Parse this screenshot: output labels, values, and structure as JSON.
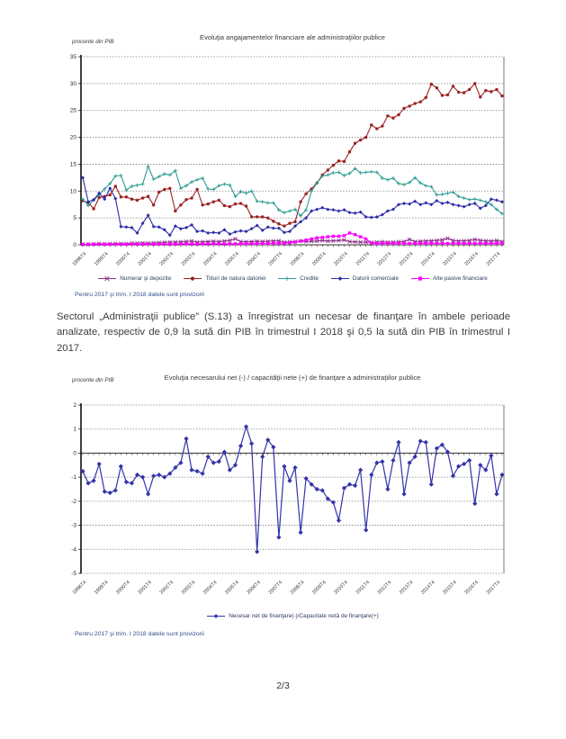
{
  "page": {
    "number": "2/3"
  },
  "paragraph": {
    "text": "Sectorul „Administraţii publice” (S.13) a înregistrat un necesar de finanţare în ambele perioade analizate, respectiv de 0,9 la sută din PIB în trimestrul I 2018 şi 0,5 la sută din PIB în trimestrul I 2017."
  },
  "chart_data": [
    {
      "type": "line",
      "title": "Evoluţia angajamentelor financiare ale administraţiilor publice",
      "y_axis_caption": "procente din PIB",
      "note": "Pentru 2017 şi trim. I 2018 datele sunt provizorii",
      "ylim": [
        0,
        35
      ],
      "ystep": 5,
      "y_tick_labels": [
        35,
        30,
        25,
        20,
        15,
        10,
        5,
        0
      ],
      "grid": "horizontal-dotted",
      "legend_position": "bottom",
      "tick_every": 4,
      "n_points": 78,
      "x_tick_labels": [
        "1998T4",
        "1999T4",
        "2000T4",
        "2001T4",
        "2002T4",
        "2003T4",
        "2004T4",
        "2005T4",
        "2006T4",
        "2007T4",
        "2008T4",
        "2009T4",
        "2010T4",
        "2011T4",
        "2012T4",
        "2013T4",
        "2014T4",
        "2015T4",
        "2016T4",
        "2017T4"
      ],
      "series": [
        {
          "name": "Numerar şi depozite",
          "color": "#8B2F8B",
          "marker": "x",
          "values": [
            0.1,
            0.1,
            0.15,
            0.2,
            0.15,
            0.2,
            0.2,
            0.25,
            0.2,
            0.3,
            0.3,
            0.35,
            0.3,
            0.35,
            0.4,
            0.45,
            0.5,
            0.5,
            0.55,
            0.6,
            0.7,
            0.5,
            0.55,
            0.6,
            0.65,
            0.6,
            0.7,
            0.8,
            1.1,
            0.6,
            0.55,
            0.6,
            0.65,
            0.6,
            0.65,
            0.7,
            0.75,
            0.5,
            0.55,
            0.6,
            0.7,
            0.6,
            0.65,
            0.7,
            0.8,
            0.7,
            0.75,
            0.8,
            0.9,
            0.6,
            0.55,
            0.5,
            0.5,
            0.45,
            0.5,
            0.55,
            0.5,
            0.5,
            0.55,
            0.6,
            1.0,
            0.6,
            0.65,
            0.7,
            0.75,
            0.8,
            0.9,
            1.2,
            0.8,
            0.7,
            0.75,
            0.8,
            1.0,
            0.8,
            0.75,
            0.7,
            0.8,
            0.6
          ]
        },
        {
          "name": "Titluri de natura datoriei",
          "color": "#9B2222",
          "marker": "circle",
          "values": [
            8.2,
            7.9,
            6.7,
            8.8,
            9.0,
            9.3,
            10.9,
            8.9,
            8.9,
            8.5,
            8.3,
            8.7,
            9.0,
            7.4,
            9.8,
            10.3,
            10.5,
            6.3,
            7.4,
            8.4,
            8.7,
            10.3,
            7.4,
            7.6,
            8.0,
            8.3,
            7.3,
            7.1,
            7.6,
            7.7,
            7.2,
            5.2,
            5.2,
            5.2,
            5.0,
            4.4,
            3.9,
            3.5,
            4.0,
            4.3,
            8.0,
            9.5,
            10.4,
            11.5,
            13.0,
            13.9,
            14.8,
            15.6,
            15.5,
            17.3,
            18.9,
            19.5,
            20.0,
            22.3,
            21.6,
            22.1,
            24.0,
            23.6,
            24.2,
            25.4,
            25.8,
            26.3,
            26.6,
            27.4,
            29.9,
            29.2,
            27.8,
            27.9,
            29.5,
            28.4,
            28.3,
            28.9,
            30.0,
            27.5,
            28.7,
            28.5,
            28.9,
            27.7
          ]
        },
        {
          "name": "Credite",
          "color": "#2E9C94",
          "marker": "plus",
          "values": [
            8.5,
            7.3,
            8.3,
            9.3,
            10.4,
            11.4,
            12.8,
            12.9,
            10.2,
            10.9,
            11.1,
            11.3,
            14.6,
            12.2,
            12.7,
            13.2,
            13.0,
            13.8,
            10.5,
            11.0,
            11.7,
            12.1,
            12.4,
            10.4,
            10.3,
            11.0,
            11.3,
            11.1,
            9.0,
            9.9,
            9.6,
            10.0,
            8.1,
            8.0,
            7.8,
            7.8,
            6.5,
            6.0,
            6.3,
            6.6,
            5.4,
            6.5,
            10.0,
            11.5,
            12.8,
            13.0,
            13.4,
            13.5,
            12.9,
            13.3,
            14.2,
            13.4,
            13.5,
            13.6,
            13.5,
            12.4,
            12.1,
            12.4,
            11.4,
            11.2,
            11.6,
            12.5,
            11.5,
            11.0,
            10.8,
            9.3,
            9.4,
            9.6,
            9.8,
            9.0,
            8.7,
            8.4,
            8.5,
            8.3,
            8.0,
            7.5,
            6.6,
            5.8
          ]
        },
        {
          "name": "Datorii comerciale",
          "color": "#2B2BA8",
          "marker": "diamond",
          "values": [
            12.5,
            8.0,
            8.4,
            9.6,
            8.5,
            10.5,
            8.6,
            3.4,
            3.3,
            3.2,
            2.2,
            4.0,
            5.5,
            3.4,
            3.3,
            2.8,
            1.8,
            3.5,
            3.0,
            3.2,
            3.7,
            2.5,
            2.6,
            2.2,
            2.3,
            2.2,
            2.8,
            2.0,
            2.4,
            2.6,
            2.5,
            3.0,
            3.6,
            2.7,
            3.3,
            3.1,
            3.1,
            2.3,
            2.5,
            3.5,
            4.3,
            5.0,
            6.3,
            6.6,
            6.9,
            6.6,
            6.5,
            6.3,
            6.5,
            6.0,
            5.9,
            6.1,
            5.2,
            5.1,
            5.2,
            5.6,
            6.3,
            6.6,
            7.5,
            7.7,
            7.6,
            8.1,
            7.5,
            7.8,
            7.5,
            8.2,
            7.7,
            7.9,
            7.5,
            7.3,
            7.1,
            7.5,
            7.7,
            6.8,
            7.3,
            8.5,
            8.3,
            8.0
          ]
        },
        {
          "name": "Alte pasive financiare",
          "color": "#FF00FF",
          "marker": "square",
          "values": [
            0.1,
            0.1,
            0.1,
            0.15,
            0.1,
            0.1,
            0.15,
            0.1,
            0.1,
            0.15,
            0.1,
            0.1,
            0.15,
            0.1,
            0.15,
            0.15,
            0.1,
            0.15,
            0.15,
            0.2,
            0.15,
            0.15,
            0.2,
            0.15,
            0.2,
            0.2,
            0.15,
            0.2,
            0.2,
            0.2,
            0.25,
            0.2,
            0.25,
            0.25,
            0.25,
            0.3,
            0.3,
            0.3,
            0.4,
            0.5,
            0.7,
            0.9,
            1.1,
            1.3,
            1.4,
            1.5,
            1.6,
            1.6,
            1.7,
            2.2,
            1.9,
            1.5,
            1.1,
            0.3,
            0.25,
            0.25,
            0.3,
            0.25,
            0.3,
            0.3,
            0.25,
            0.3,
            0.25,
            0.3,
            0.3,
            0.25,
            0.3,
            0.25,
            0.3,
            0.3,
            0.25,
            0.3,
            0.3,
            0.25,
            0.3,
            0.25,
            0.3,
            0.3
          ]
        }
      ]
    },
    {
      "type": "line",
      "title": "Evoluţia necesarului net (-) / capacităţii nete (+) de finanţare a administraţiilor publice",
      "y_axis_caption": "procente din PIB",
      "note": "Pentru 2017 şi trim. I 2018 datele sunt provizorii",
      "ylim": [
        -5,
        2
      ],
      "ystep": 1,
      "y_tick_labels": [
        2,
        1,
        0,
        -1,
        -2,
        -3,
        -4,
        -5
      ],
      "grid": "horizontal-dotted",
      "legend_position": "bottom",
      "tick_every": 4,
      "n_points": 78,
      "x_tick_labels": [
        "1998T4",
        "1999T4",
        "2000T4",
        "2001T4",
        "2002T4",
        "2003T4",
        "2004T4",
        "2005T4",
        "2006T4",
        "2007T4",
        "2008T4",
        "2009T4",
        "2010T4",
        "2011T4",
        "2012T4",
        "2013T4",
        "2014T4",
        "2015T4",
        "2016T4",
        "2017T4"
      ],
      "series": [
        {
          "name": "Necesar net de finanţare(-)/Capacitate netă de finanţare(+)",
          "color": "#3333AA",
          "marker": "diamond",
          "values": [
            -0.75,
            -1.25,
            -1.15,
            -0.45,
            -1.6,
            -1.65,
            -1.55,
            -0.55,
            -1.2,
            -1.25,
            -0.9,
            -1.0,
            -1.7,
            -0.95,
            -0.9,
            -1.0,
            -0.85,
            -0.6,
            -0.4,
            0.6,
            -0.7,
            -0.75,
            -0.85,
            -0.15,
            -0.4,
            -0.35,
            0.05,
            -0.7,
            -0.5,
            0.3,
            1.1,
            0.4,
            -4.1,
            -0.15,
            0.55,
            0.25,
            -3.5,
            -0.55,
            -1.15,
            -0.6,
            -3.3,
            -1.05,
            -1.3,
            -1.5,
            -1.55,
            -1.9,
            -2.05,
            -2.8,
            -1.45,
            -1.3,
            -1.35,
            -0.7,
            -3.2,
            -0.9,
            -0.4,
            -0.35,
            -1.5,
            -0.3,
            0.45,
            -1.7,
            -0.4,
            -0.15,
            0.5,
            0.45,
            -1.3,
            0.2,
            0.35,
            0.05,
            -0.95,
            -0.55,
            -0.45,
            -0.3,
            -2.1,
            -0.5,
            -0.7,
            -0.1,
            -1.7,
            -0.9
          ]
        }
      ]
    }
  ]
}
